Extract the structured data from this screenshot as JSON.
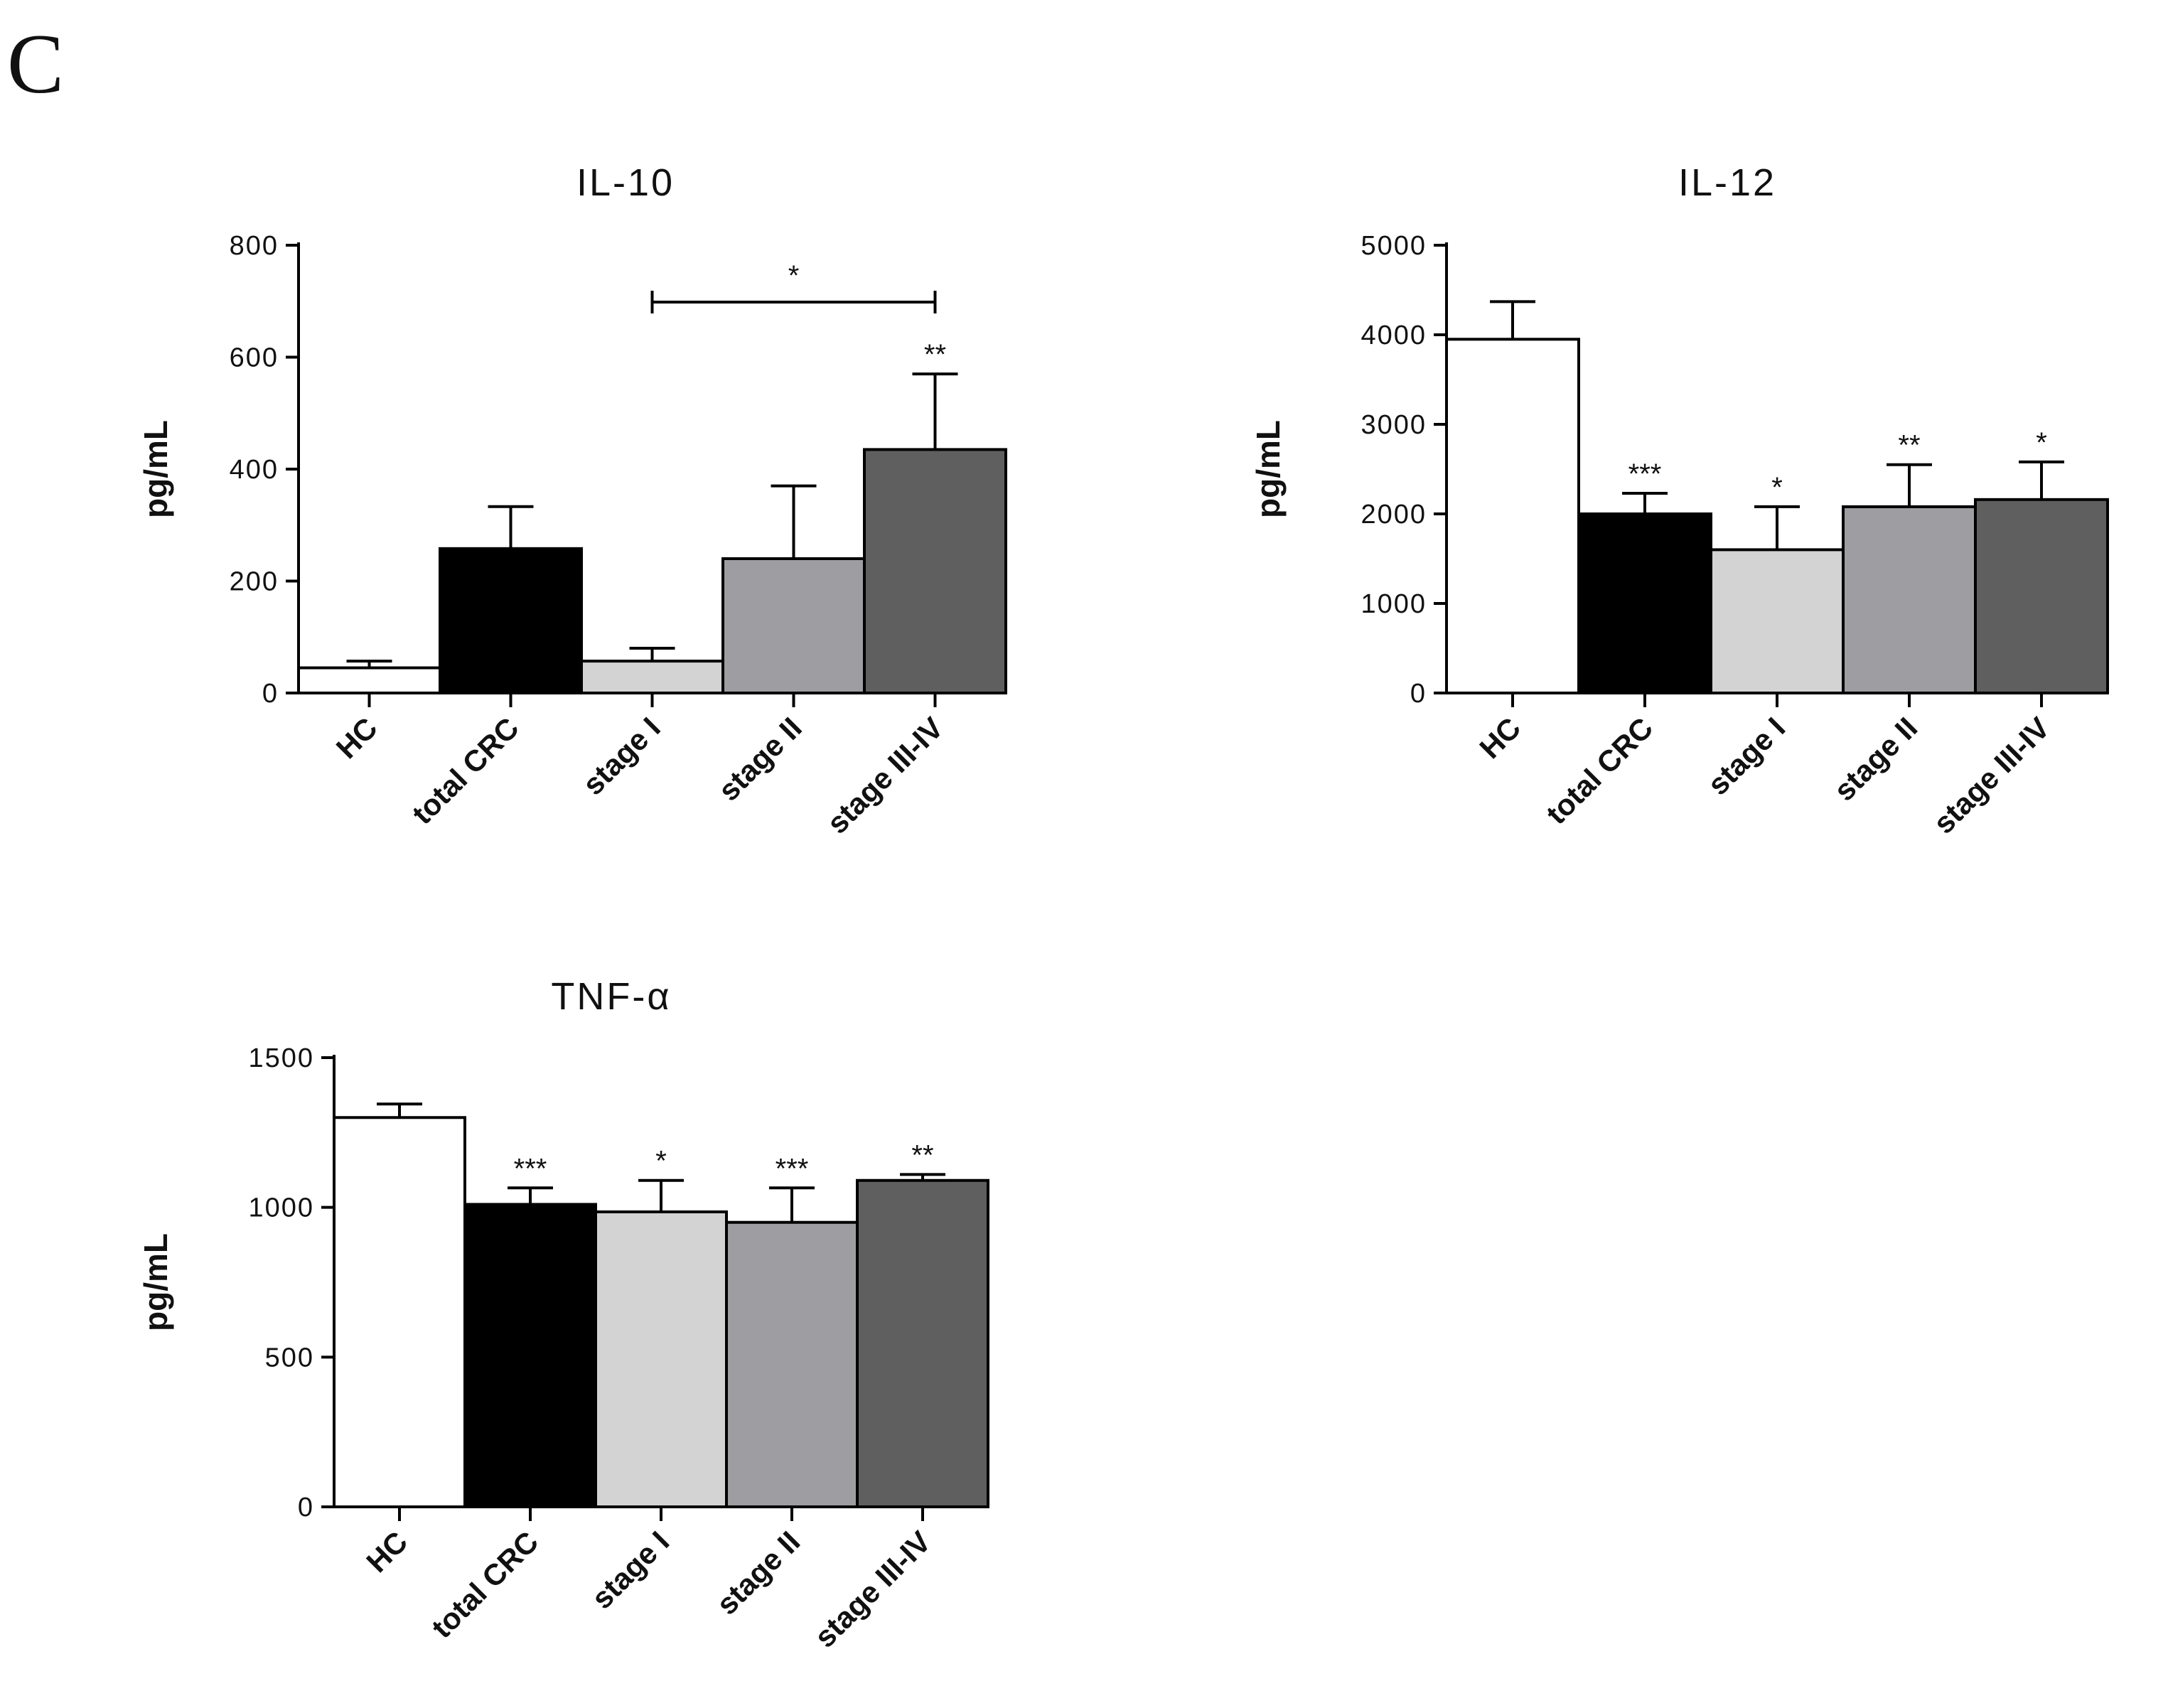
{
  "panel_label": "C",
  "chart_data": [
    {
      "type": "bar",
      "title": "IL-10",
      "ylabel": "pg/mL",
      "xlabel": "",
      "ylim": [
        0,
        800
      ],
      "yticks": [
        0,
        200,
        400,
        600,
        800
      ],
      "categories": [
        "HC",
        "total CRC",
        "stage I",
        "stage II",
        "stage III-IV"
      ],
      "values": [
        45,
        258,
        57,
        240,
        435
      ],
      "errors": [
        12,
        75,
        23,
        130,
        135
      ],
      "colors": [
        "#ffffff",
        "#000000",
        "#d3d3d3",
        "#9e9ea2",
        "#5f5f5f"
      ],
      "significance": [
        "",
        "",
        "",
        "",
        "**"
      ],
      "brackets": [
        {
          "from": "stage I",
          "to": "stage III-IV",
          "label": "*"
        }
      ]
    },
    {
      "type": "bar",
      "title": "IL-12",
      "ylabel": "pg/mL",
      "xlabel": "",
      "ylim": [
        0,
        5000
      ],
      "yticks": [
        0,
        1000,
        2000,
        3000,
        4000,
        5000
      ],
      "categories": [
        "HC",
        "total CRC",
        "stage I",
        "stage II",
        "stage III-IV"
      ],
      "values": [
        3950,
        2000,
        1600,
        2080,
        2160
      ],
      "errors": [
        420,
        230,
        480,
        470,
        420
      ],
      "colors": [
        "#ffffff",
        "#000000",
        "#d3d3d3",
        "#9e9ea2",
        "#5f5f5f"
      ],
      "significance": [
        "",
        "***",
        "*",
        "**",
        "*"
      ],
      "brackets": []
    },
    {
      "type": "bar",
      "title": "TNF-α",
      "ylabel": "pg/mL",
      "xlabel": "",
      "ylim": [
        0,
        1500
      ],
      "yticks": [
        0,
        500,
        1000,
        1500
      ],
      "categories": [
        "HC",
        "total CRC",
        "stage I",
        "stage II",
        "stage III-IV"
      ],
      "values": [
        1300,
        1010,
        985,
        950,
        1090
      ],
      "errors": [
        45,
        55,
        105,
        115,
        20
      ],
      "colors": [
        "#ffffff",
        "#000000",
        "#d3d3d3",
        "#9e9ea2",
        "#5f5f5f"
      ],
      "significance": [
        "",
        "***",
        "*",
        "***",
        "**"
      ],
      "brackets": []
    }
  ]
}
